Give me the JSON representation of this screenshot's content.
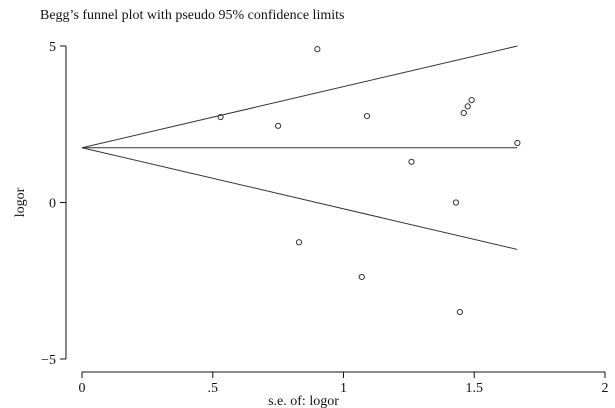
{
  "chart_data": {
    "type": "scatter",
    "title": "Begg’s funnel plot with pseudo 95% confidence limits",
    "xlabel": "s.e. of: logor",
    "ylabel": "logor",
    "xlim": [
      0,
      2
    ],
    "ylim": [
      -5,
      5
    ],
    "x_ticks": [
      0,
      0.5,
      1,
      1.5,
      2
    ],
    "x_tick_labels": [
      "0",
      ".5",
      "1",
      "1.5",
      "2"
    ],
    "y_ticks": [
      -5,
      0,
      5
    ],
    "y_tick_labels": [
      "−5",
      "0",
      "5"
    ],
    "grid": false,
    "points": [
      {
        "x": 0.53,
        "y": 2.73
      },
      {
        "x": 0.75,
        "y": 2.45
      },
      {
        "x": 0.83,
        "y": -1.27
      },
      {
        "x": 0.9,
        "y": 4.9
      },
      {
        "x": 1.07,
        "y": -2.38
      },
      {
        "x": 1.09,
        "y": 2.76
      },
      {
        "x": 1.26,
        "y": 1.3
      },
      {
        "x": 1.43,
        "y": 0.0
      },
      {
        "x": 1.445,
        "y": -3.5
      },
      {
        "x": 1.46,
        "y": 2.86
      },
      {
        "x": 1.475,
        "y": 3.07
      },
      {
        "x": 1.49,
        "y": 3.27
      },
      {
        "x": 1.665,
        "y": 1.9
      }
    ],
    "pooled_estimate": 1.75,
    "funnel": {
      "x_end": 1.665,
      "upper_end": 5.0,
      "lower_end": -1.5
    }
  },
  "colors": {
    "axis": "#111111",
    "line": "#333333",
    "marker": "#333333",
    "background": "#ffffff"
  }
}
